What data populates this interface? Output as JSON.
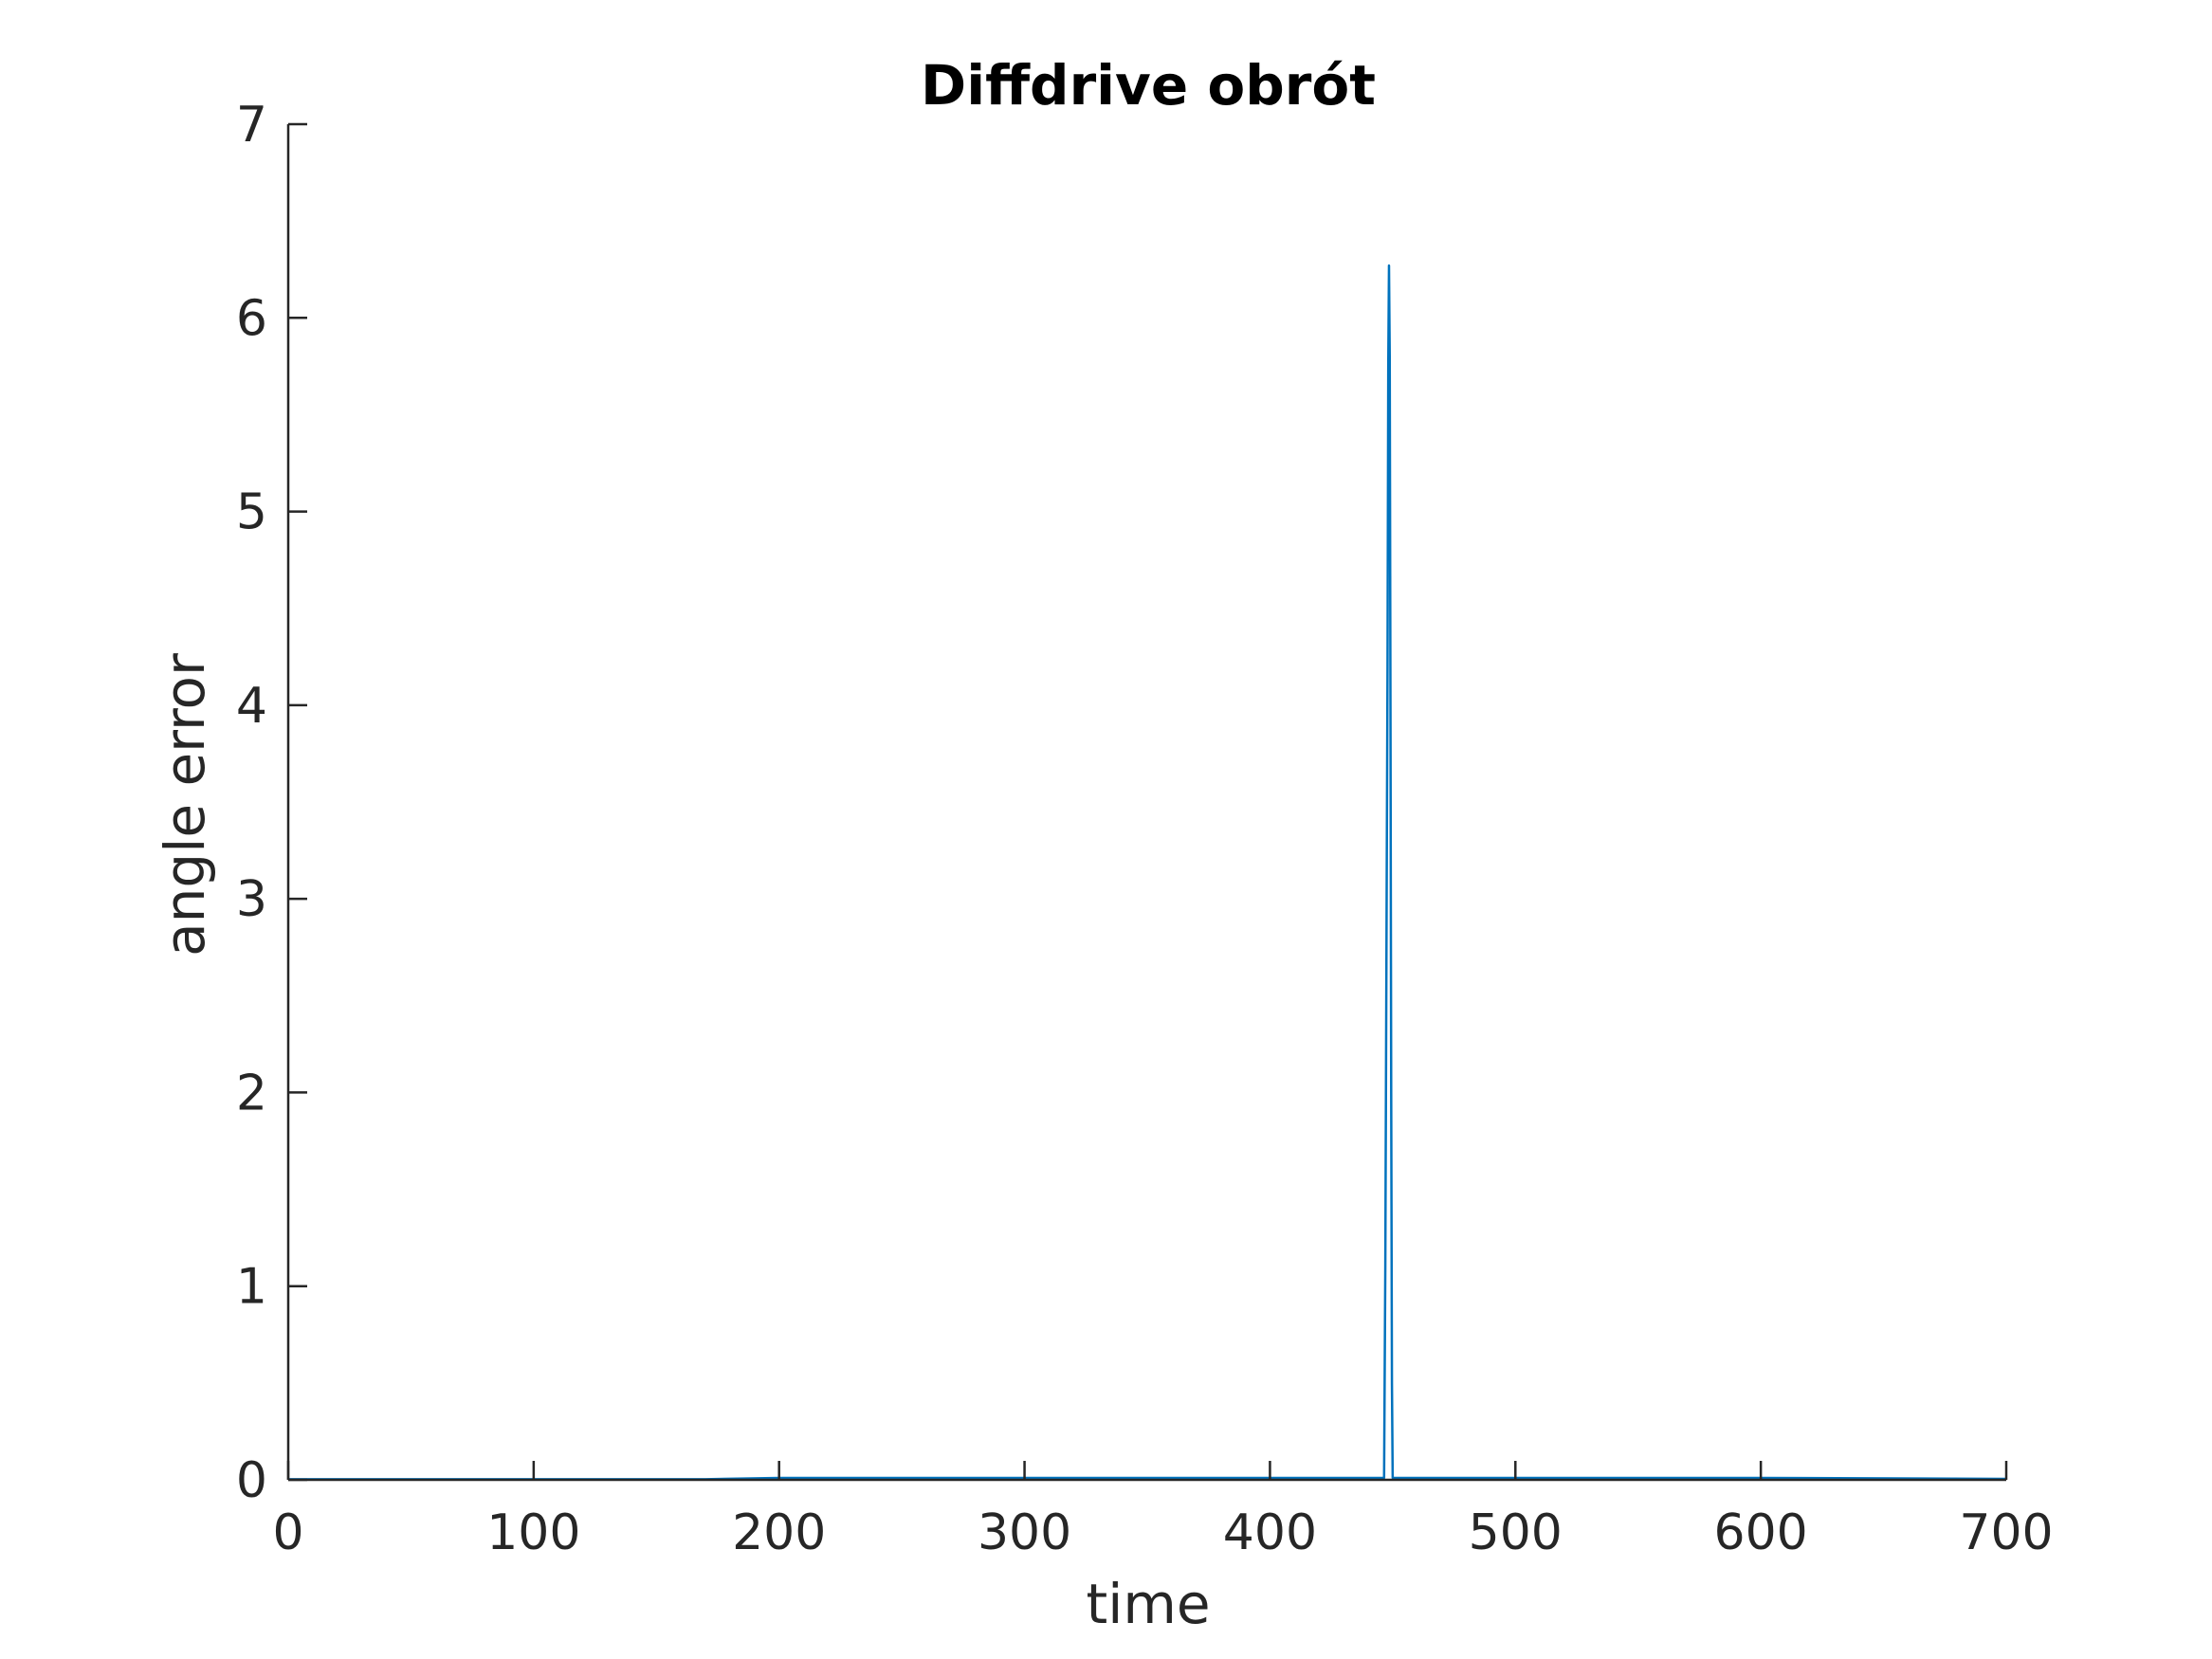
{
  "chart_data": {
    "type": "line",
    "title": "Diffdrive obrót",
    "xlabel": "time",
    "ylabel": "angle error",
    "xlim": [
      0,
      700
    ],
    "ylim": [
      0,
      7
    ],
    "xticks": [
      0,
      100,
      200,
      300,
      400,
      500,
      600,
      700
    ],
    "yticks": [
      0,
      1,
      2,
      3,
      4,
      5,
      6,
      7
    ],
    "grid": false,
    "line_color": "#0072BD",
    "axis_color": "#262626",
    "series": [
      {
        "x": [
          0,
          100,
          170,
          200,
          300,
          400,
          446.5,
          447.0,
          447.3,
          447.6,
          447.9,
          448.2,
          448.5,
          448.8,
          449.1,
          449.4,
          449.7,
          450,
          500,
          600,
          700
        ],
        "y": [
          0.003,
          0.003,
          0.003,
          0.01,
          0.01,
          0.01,
          0.01,
          1.1,
          2.15,
          3.2,
          4.2,
          5.75,
          6.27,
          5.8,
          4.0,
          2.0,
          0.5,
          0.01,
          0.01,
          0.01,
          0.005
        ]
      }
    ]
  }
}
